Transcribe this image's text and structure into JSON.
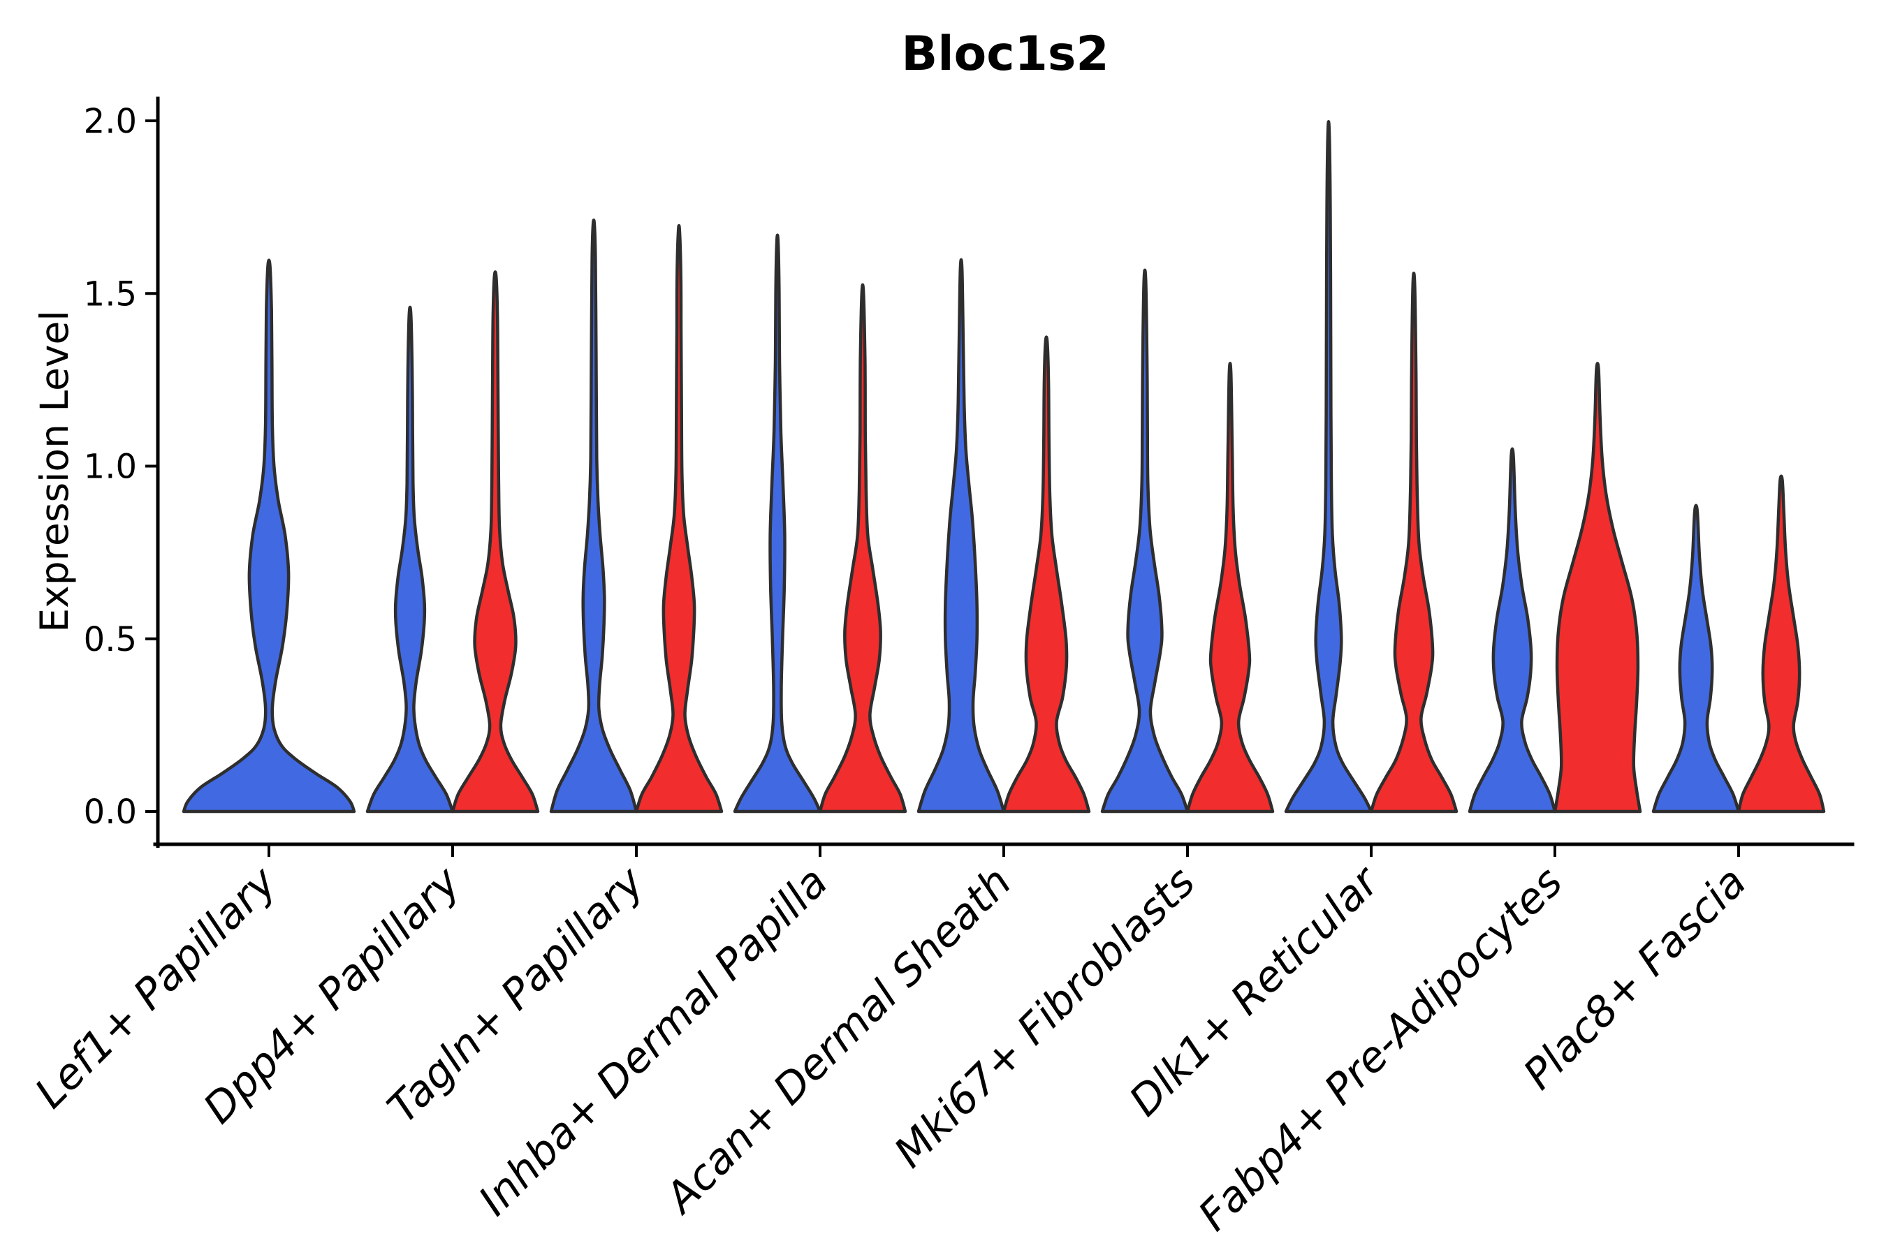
{
  "chart_data": {
    "type": "violin",
    "title": "Bloc1s2",
    "xlabel": "",
    "ylabel": "Expression Level",
    "ylim": [
      0,
      2.0
    ],
    "yticks": [
      0.0,
      0.5,
      1.0,
      1.5,
      2.0
    ],
    "ytick_labels": [
      "0.0",
      "0.5",
      "1.0",
      "1.5",
      "2.0"
    ],
    "grid": false,
    "legend": "none",
    "categories": [
      "Lef1+ Papillary",
      "Dpp4+ Papillary",
      "Tagln+ Papillary",
      "Inhba+ Dermal Papilla",
      "Acan+ Dermal Sheath",
      "Mki67+ Fibroblasts",
      "Dlk1+ Reticular",
      "Fabp4+ Pre-Adipocytes",
      "Plac8+ Fascia"
    ],
    "series_colors": {
      "group1": "#4169e1",
      "group2": "#f12d2d"
    },
    "outline_color": "#2e2e2e",
    "violins": [
      {
        "category_index": 0,
        "series": "group1",
        "side": "full",
        "max": 1.58,
        "profile": [
          [
            0,
            1
          ],
          [
            0.03,
            0.95
          ],
          [
            0.07,
            0.8
          ],
          [
            0.11,
            0.55
          ],
          [
            0.15,
            0.32
          ],
          [
            0.19,
            0.15
          ],
          [
            0.24,
            0.06
          ],
          [
            0.3,
            0.04
          ],
          [
            0.38,
            0.08
          ],
          [
            0.48,
            0.16
          ],
          [
            0.58,
            0.21
          ],
          [
            0.69,
            0.23
          ],
          [
            0.8,
            0.19
          ],
          [
            0.9,
            0.11
          ],
          [
            1.0,
            0.06
          ],
          [
            1.12,
            0.04
          ],
          [
            1.3,
            0.035
          ],
          [
            1.45,
            0.03
          ],
          [
            1.58,
            0.012
          ]
        ]
      },
      {
        "category_index": 1,
        "series": "group1",
        "side": "left",
        "max": 1.44,
        "profile": [
          [
            0,
            1
          ],
          [
            0.05,
            0.85
          ],
          [
            0.1,
            0.6
          ],
          [
            0.15,
            0.36
          ],
          [
            0.2,
            0.2
          ],
          [
            0.26,
            0.11
          ],
          [
            0.31,
            0.09
          ],
          [
            0.38,
            0.15
          ],
          [
            0.46,
            0.26
          ],
          [
            0.54,
            0.33
          ],
          [
            0.6,
            0.34
          ],
          [
            0.68,
            0.28
          ],
          [
            0.76,
            0.18
          ],
          [
            0.85,
            0.1
          ],
          [
            0.95,
            0.07
          ],
          [
            1.1,
            0.06
          ],
          [
            1.28,
            0.05
          ],
          [
            1.44,
            0.02
          ]
        ]
      },
      {
        "category_index": 1,
        "series": "group2",
        "side": "right",
        "max": 1.55,
        "profile": [
          [
            0,
            1
          ],
          [
            0.05,
            0.87
          ],
          [
            0.1,
            0.63
          ],
          [
            0.15,
            0.38
          ],
          [
            0.2,
            0.2
          ],
          [
            0.25,
            0.13
          ],
          [
            0.32,
            0.22
          ],
          [
            0.4,
            0.38
          ],
          [
            0.48,
            0.48
          ],
          [
            0.56,
            0.44
          ],
          [
            0.64,
            0.3
          ],
          [
            0.72,
            0.17
          ],
          [
            0.82,
            0.1
          ],
          [
            0.95,
            0.08
          ],
          [
            1.1,
            0.07
          ],
          [
            1.3,
            0.06
          ],
          [
            1.45,
            0.05
          ],
          [
            1.55,
            0.02
          ]
        ]
      },
      {
        "category_index": 2,
        "series": "group1",
        "side": "left",
        "max": 1.7,
        "profile": [
          [
            0,
            1
          ],
          [
            0.06,
            0.86
          ],
          [
            0.12,
            0.62
          ],
          [
            0.18,
            0.38
          ],
          [
            0.24,
            0.2
          ],
          [
            0.3,
            0.12
          ],
          [
            0.37,
            0.14
          ],
          [
            0.45,
            0.2
          ],
          [
            0.54,
            0.24
          ],
          [
            0.62,
            0.25
          ],
          [
            0.7,
            0.22
          ],
          [
            0.8,
            0.15
          ],
          [
            0.9,
            0.1
          ],
          [
            1.02,
            0.07
          ],
          [
            1.2,
            0.06
          ],
          [
            1.45,
            0.05
          ],
          [
            1.6,
            0.04
          ],
          [
            1.7,
            0.015
          ]
        ]
      },
      {
        "category_index": 2,
        "series": "group2",
        "side": "right",
        "max": 1.68,
        "profile": [
          [
            0,
            1
          ],
          [
            0.05,
            0.87
          ],
          [
            0.1,
            0.64
          ],
          [
            0.16,
            0.4
          ],
          [
            0.22,
            0.22
          ],
          [
            0.28,
            0.14
          ],
          [
            0.35,
            0.2
          ],
          [
            0.44,
            0.3
          ],
          [
            0.53,
            0.35
          ],
          [
            0.6,
            0.36
          ],
          [
            0.68,
            0.3
          ],
          [
            0.77,
            0.2
          ],
          [
            0.86,
            0.11
          ],
          [
            0.98,
            0.07
          ],
          [
            1.15,
            0.06
          ],
          [
            1.4,
            0.05
          ],
          [
            1.55,
            0.045
          ],
          [
            1.68,
            0.015
          ]
        ]
      },
      {
        "category_index": 3,
        "series": "group1",
        "side": "left",
        "max": 1.65,
        "profile": [
          [
            0,
            1
          ],
          [
            0.04,
            0.85
          ],
          [
            0.09,
            0.6
          ],
          [
            0.14,
            0.35
          ],
          [
            0.19,
            0.18
          ],
          [
            0.26,
            0.1
          ],
          [
            0.36,
            0.09
          ],
          [
            0.5,
            0.12
          ],
          [
            0.65,
            0.16
          ],
          [
            0.8,
            0.17
          ],
          [
            0.95,
            0.13
          ],
          [
            1.1,
            0.08
          ],
          [
            1.3,
            0.05
          ],
          [
            1.5,
            0.04
          ],
          [
            1.65,
            0.015
          ]
        ]
      },
      {
        "category_index": 3,
        "series": "group2",
        "side": "right",
        "max": 1.5,
        "profile": [
          [
            0,
            1
          ],
          [
            0.05,
            0.88
          ],
          [
            0.1,
            0.66
          ],
          [
            0.16,
            0.42
          ],
          [
            0.22,
            0.25
          ],
          [
            0.28,
            0.17
          ],
          [
            0.36,
            0.28
          ],
          [
            0.44,
            0.39
          ],
          [
            0.52,
            0.42
          ],
          [
            0.6,
            0.36
          ],
          [
            0.7,
            0.24
          ],
          [
            0.8,
            0.12
          ],
          [
            0.93,
            0.08
          ],
          [
            1.1,
            0.06
          ],
          [
            1.3,
            0.055
          ],
          [
            1.5,
            0.02
          ]
        ]
      },
      {
        "category_index": 4,
        "series": "group1",
        "side": "left",
        "max": 1.57,
        "profile": [
          [
            0,
            1
          ],
          [
            0.06,
            0.85
          ],
          [
            0.12,
            0.62
          ],
          [
            0.18,
            0.42
          ],
          [
            0.25,
            0.3
          ],
          [
            0.32,
            0.28
          ],
          [
            0.4,
            0.33
          ],
          [
            0.5,
            0.37
          ],
          [
            0.6,
            0.37
          ],
          [
            0.72,
            0.33
          ],
          [
            0.85,
            0.26
          ],
          [
            0.95,
            0.18
          ],
          [
            1.05,
            0.11
          ],
          [
            1.18,
            0.07
          ],
          [
            1.35,
            0.05
          ],
          [
            1.57,
            0.02
          ]
        ]
      },
      {
        "category_index": 4,
        "series": "group2",
        "side": "right",
        "max": 1.36,
        "profile": [
          [
            0,
            1
          ],
          [
            0.05,
            0.88
          ],
          [
            0.1,
            0.68
          ],
          [
            0.15,
            0.45
          ],
          [
            0.2,
            0.3
          ],
          [
            0.26,
            0.24
          ],
          [
            0.33,
            0.38
          ],
          [
            0.42,
            0.47
          ],
          [
            0.5,
            0.46
          ],
          [
            0.6,
            0.36
          ],
          [
            0.7,
            0.24
          ],
          [
            0.8,
            0.13
          ],
          [
            0.92,
            0.08
          ],
          [
            1.08,
            0.06
          ],
          [
            1.25,
            0.05
          ],
          [
            1.36,
            0.02
          ]
        ]
      },
      {
        "category_index": 5,
        "series": "group1",
        "side": "left",
        "max": 1.54,
        "profile": [
          [
            0,
            1
          ],
          [
            0.05,
            0.86
          ],
          [
            0.1,
            0.63
          ],
          [
            0.16,
            0.4
          ],
          [
            0.22,
            0.22
          ],
          [
            0.29,
            0.13
          ],
          [
            0.37,
            0.23
          ],
          [
            0.46,
            0.36
          ],
          [
            0.52,
            0.4
          ],
          [
            0.62,
            0.34
          ],
          [
            0.72,
            0.22
          ],
          [
            0.82,
            0.12
          ],
          [
            0.95,
            0.07
          ],
          [
            1.1,
            0.06
          ],
          [
            1.32,
            0.05
          ],
          [
            1.54,
            0.02
          ]
        ]
      },
      {
        "category_index": 5,
        "series": "group2",
        "side": "right",
        "max": 1.27,
        "profile": [
          [
            0,
            1
          ],
          [
            0.05,
            0.88
          ],
          [
            0.1,
            0.68
          ],
          [
            0.15,
            0.45
          ],
          [
            0.2,
            0.28
          ],
          [
            0.26,
            0.2
          ],
          [
            0.33,
            0.33
          ],
          [
            0.41,
            0.44
          ],
          [
            0.46,
            0.45
          ],
          [
            0.56,
            0.36
          ],
          [
            0.66,
            0.22
          ],
          [
            0.76,
            0.12
          ],
          [
            0.88,
            0.07
          ],
          [
            1.05,
            0.05
          ],
          [
            1.27,
            0.02
          ]
        ]
      },
      {
        "category_index": 6,
        "series": "group1",
        "side": "left",
        "max": 1.97,
        "profile": [
          [
            0,
            1
          ],
          [
            0.04,
            0.84
          ],
          [
            0.09,
            0.58
          ],
          [
            0.14,
            0.33
          ],
          [
            0.19,
            0.17
          ],
          [
            0.26,
            0.1
          ],
          [
            0.34,
            0.18
          ],
          [
            0.43,
            0.27
          ],
          [
            0.5,
            0.3
          ],
          [
            0.6,
            0.25
          ],
          [
            0.7,
            0.15
          ],
          [
            0.8,
            0.09
          ],
          [
            0.95,
            0.065
          ],
          [
            1.15,
            0.055
          ],
          [
            1.45,
            0.05
          ],
          [
            1.75,
            0.04
          ],
          [
            1.97,
            0.015
          ]
        ]
      },
      {
        "category_index": 6,
        "series": "group2",
        "side": "right",
        "max": 1.53,
        "profile": [
          [
            0,
            1
          ],
          [
            0.05,
            0.87
          ],
          [
            0.1,
            0.65
          ],
          [
            0.15,
            0.42
          ],
          [
            0.21,
            0.25
          ],
          [
            0.27,
            0.17
          ],
          [
            0.34,
            0.3
          ],
          [
            0.42,
            0.42
          ],
          [
            0.48,
            0.44
          ],
          [
            0.58,
            0.36
          ],
          [
            0.68,
            0.22
          ],
          [
            0.78,
            0.12
          ],
          [
            0.92,
            0.08
          ],
          [
            1.08,
            0.06
          ],
          [
            1.3,
            0.05
          ],
          [
            1.53,
            0.02
          ]
        ]
      },
      {
        "category_index": 7,
        "series": "group1",
        "side": "left",
        "max": 1.03,
        "profile": [
          [
            0,
            1
          ],
          [
            0.05,
            0.88
          ],
          [
            0.1,
            0.68
          ],
          [
            0.15,
            0.46
          ],
          [
            0.2,
            0.3
          ],
          [
            0.26,
            0.22
          ],
          [
            0.33,
            0.35
          ],
          [
            0.4,
            0.43
          ],
          [
            0.47,
            0.44
          ],
          [
            0.56,
            0.36
          ],
          [
            0.65,
            0.23
          ],
          [
            0.75,
            0.13
          ],
          [
            0.87,
            0.07
          ],
          [
            1.03,
            0.025
          ]
        ]
      },
      {
        "category_index": 7,
        "series": "group2",
        "side": "right",
        "max": 1.28,
        "profile": [
          [
            0,
            1
          ],
          [
            0.06,
            0.92
          ],
          [
            0.13,
            0.85
          ],
          [
            0.22,
            0.87
          ],
          [
            0.32,
            0.92
          ],
          [
            0.42,
            0.95
          ],
          [
            0.52,
            0.92
          ],
          [
            0.62,
            0.8
          ],
          [
            0.72,
            0.58
          ],
          [
            0.82,
            0.36
          ],
          [
            0.92,
            0.2
          ],
          [
            1.02,
            0.11
          ],
          [
            1.14,
            0.06
          ],
          [
            1.28,
            0.025
          ]
        ]
      },
      {
        "category_index": 8,
        "series": "group1",
        "side": "left",
        "max": 0.87,
        "profile": [
          [
            0,
            1
          ],
          [
            0.05,
            0.87
          ],
          [
            0.1,
            0.66
          ],
          [
            0.15,
            0.45
          ],
          [
            0.2,
            0.31
          ],
          [
            0.26,
            0.26
          ],
          [
            0.33,
            0.34
          ],
          [
            0.41,
            0.38
          ],
          [
            0.48,
            0.35
          ],
          [
            0.56,
            0.25
          ],
          [
            0.64,
            0.15
          ],
          [
            0.74,
            0.08
          ],
          [
            0.87,
            0.03
          ]
        ]
      },
      {
        "category_index": 8,
        "series": "group2",
        "side": "right",
        "max": 0.96,
        "profile": [
          [
            0,
            1
          ],
          [
            0.05,
            0.9
          ],
          [
            0.1,
            0.7
          ],
          [
            0.15,
            0.5
          ],
          [
            0.2,
            0.35
          ],
          [
            0.25,
            0.29
          ],
          [
            0.32,
            0.39
          ],
          [
            0.4,
            0.43
          ],
          [
            0.48,
            0.39
          ],
          [
            0.57,
            0.28
          ],
          [
            0.66,
            0.17
          ],
          [
            0.76,
            0.1
          ],
          [
            0.87,
            0.06
          ],
          [
            0.96,
            0.025
          ]
        ]
      }
    ]
  }
}
